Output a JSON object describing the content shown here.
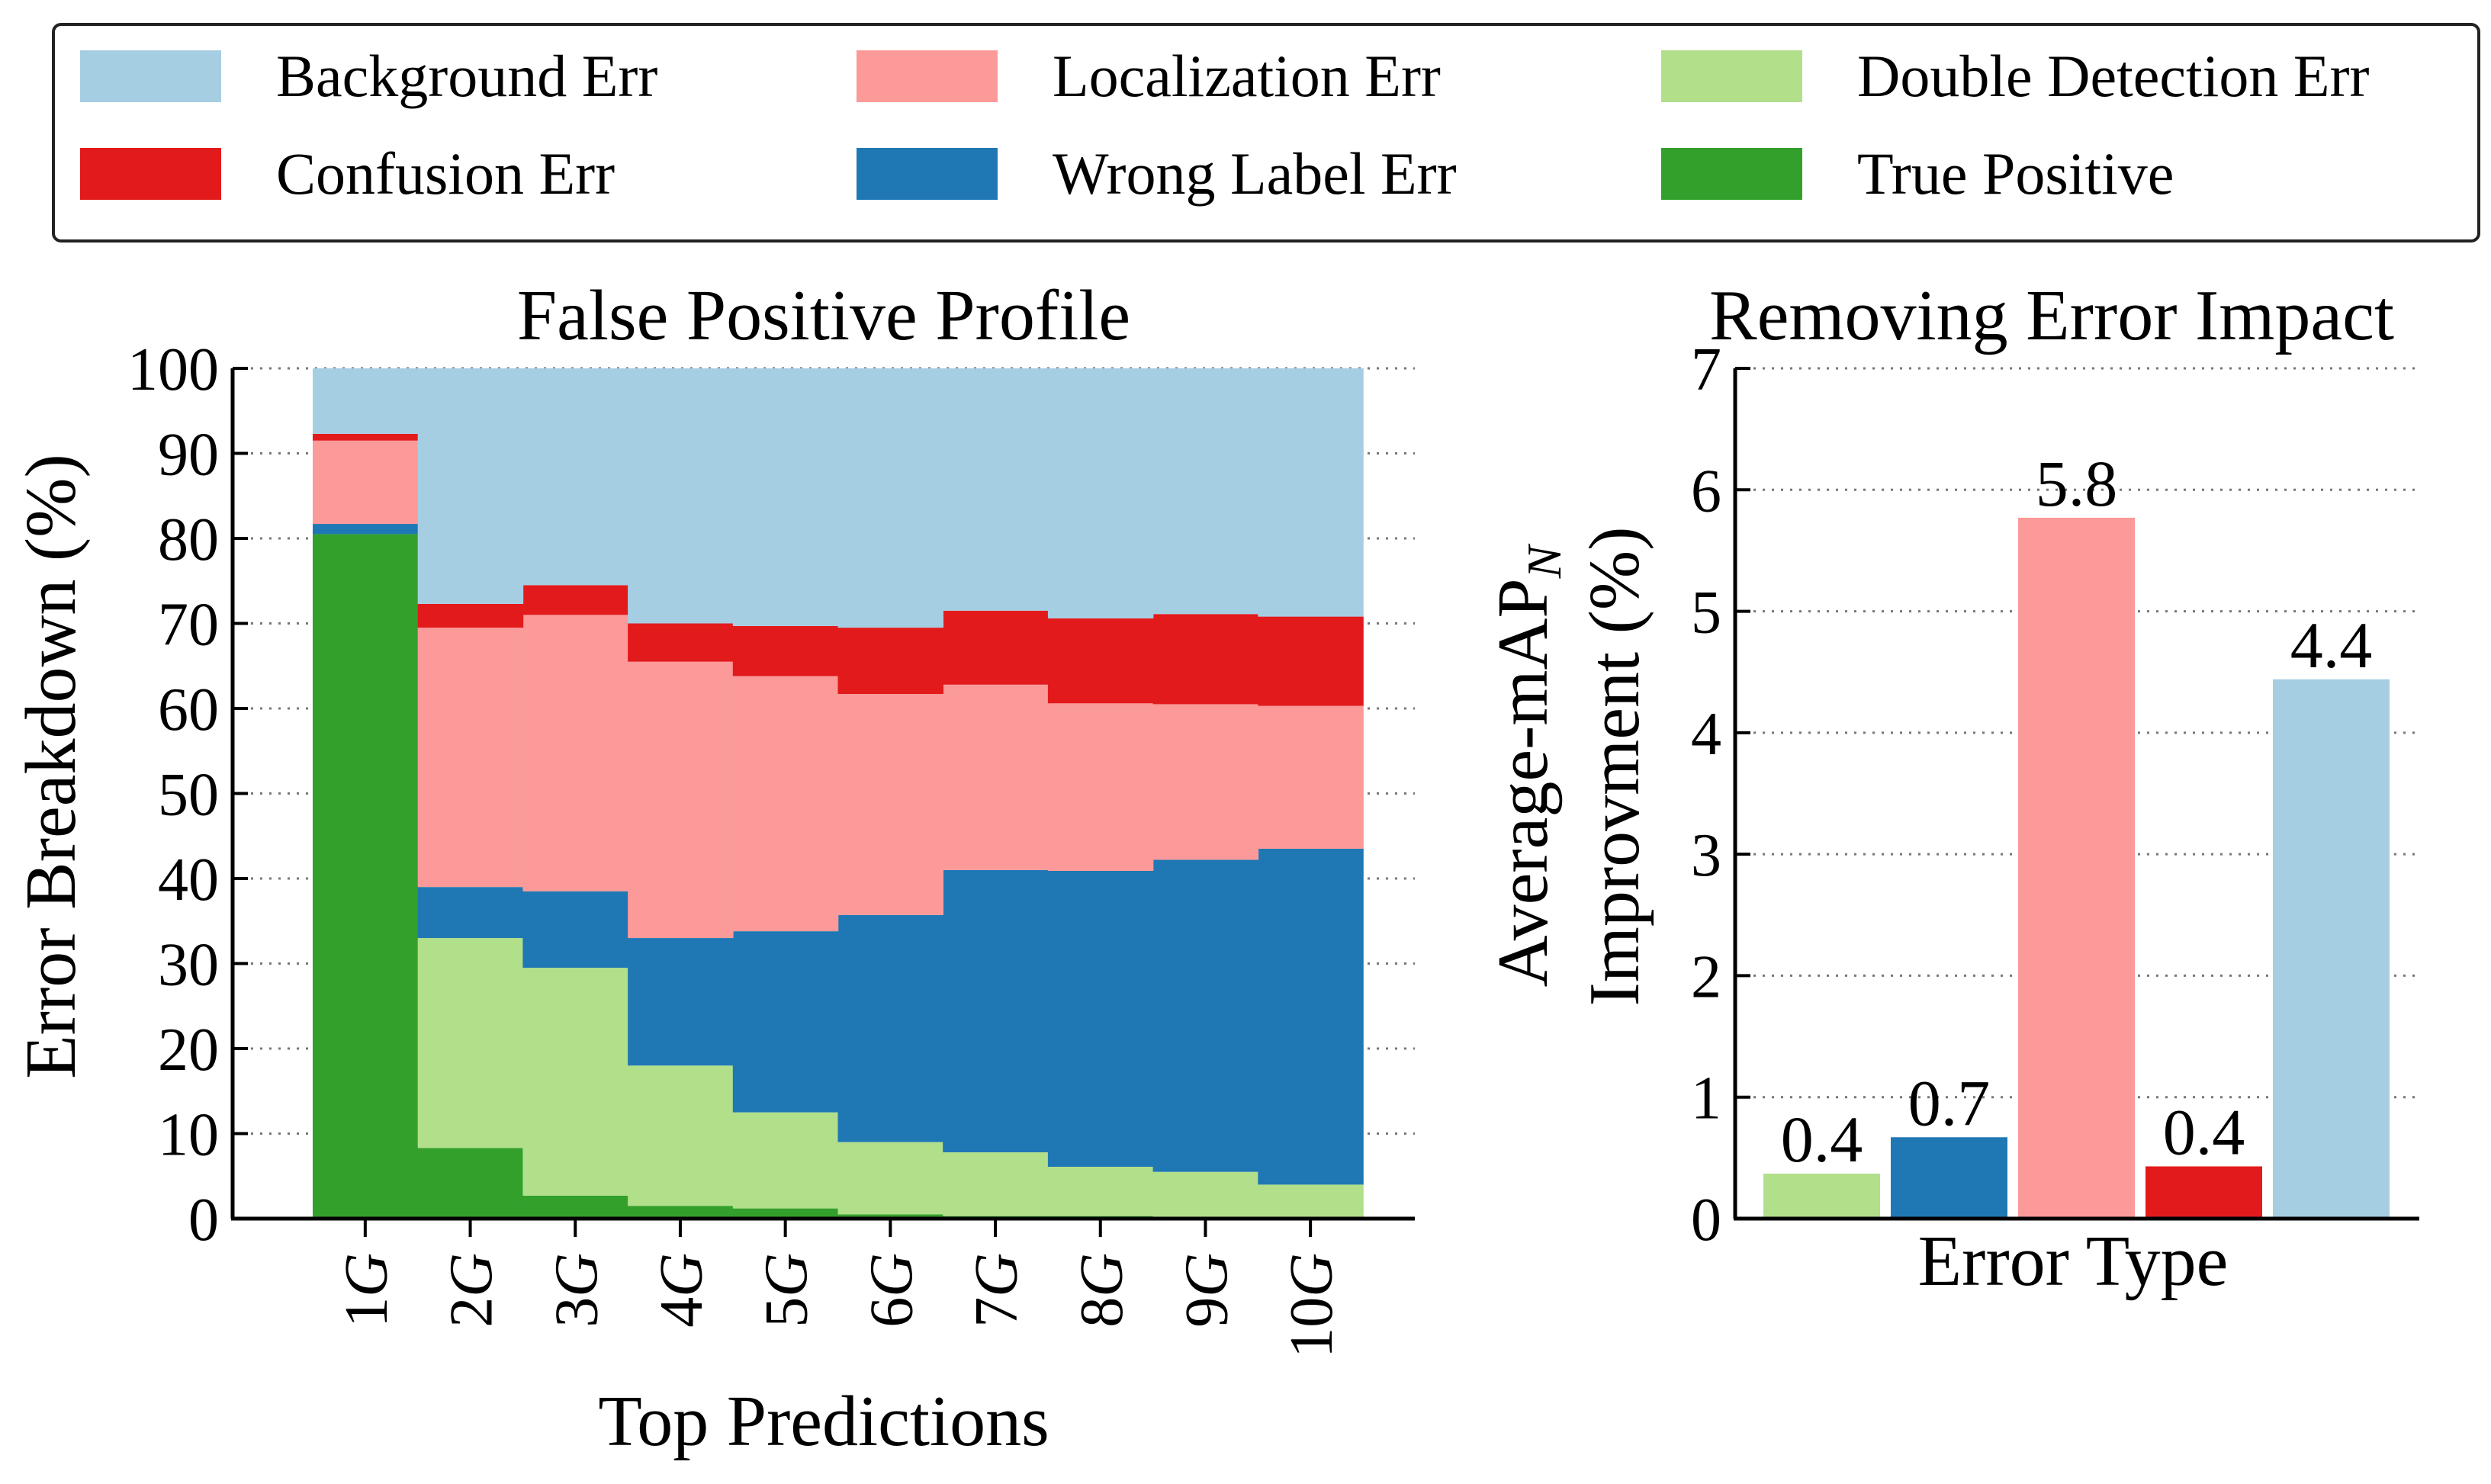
{
  "colors": {
    "background_err": "#a6cee3",
    "localization_err": "#fb9a99",
    "double_detection_err": "#b2df8a",
    "confusion_err": "#e31a1c",
    "wrong_label_err": "#1f78b4",
    "true_positive": "#33a02c"
  },
  "legend": {
    "placement": "top",
    "items": [
      {
        "key": "background_err",
        "label": "Background Err"
      },
      {
        "key": "localization_err",
        "label": "Localization Err"
      },
      {
        "key": "double_detection_err",
        "label": "Double Detection Err"
      },
      {
        "key": "confusion_err",
        "label": "Confusion Err"
      },
      {
        "key": "wrong_label_err",
        "label": "Wrong Label Err"
      },
      {
        "key": "true_positive",
        "label": "True Positive"
      }
    ]
  },
  "chart_data": [
    {
      "type": "area",
      "stacked": true,
      "step": true,
      "title": "False Positive Profile",
      "xlabel": "Top Predictions",
      "ylabel": "Error Breakdown (%)",
      "ylim": [
        0,
        100
      ],
      "yticks": [
        0,
        10,
        20,
        30,
        40,
        50,
        60,
        70,
        80,
        90,
        100
      ],
      "grid": "horizontal dotted",
      "categories": [
        "1G",
        "2G",
        "3G",
        "4G",
        "5G",
        "6G",
        "7G",
        "8G",
        "9G",
        "10G"
      ],
      "series": [
        {
          "key": "true_positive",
          "name": "True Positive",
          "values": [
            80.5,
            8.3,
            2.7,
            1.5,
            1.2,
            0.5,
            0.3,
            0.3,
            0.2,
            0.2
          ]
        },
        {
          "key": "double_detection_err",
          "name": "Double Detection Err",
          "values": [
            0,
            24.7,
            26.8,
            16.5,
            11.3,
            8.5,
            7.5,
            5.8,
            5.3,
            3.8
          ]
        },
        {
          "key": "wrong_label_err",
          "name": "Wrong Label Err",
          "values": [
            1.2,
            6.0,
            9.0,
            15.0,
            21.3,
            26.7,
            33.2,
            34.8,
            36.7,
            39.5
          ]
        },
        {
          "key": "localization_err",
          "name": "Localization Err",
          "values": [
            9.8,
            30.5,
            32.5,
            32.5,
            30.0,
            26.0,
            21.8,
            19.7,
            18.3,
            16.8
          ]
        },
        {
          "key": "confusion_err",
          "name": "Confusion Err",
          "values": [
            0.8,
            2.8,
            3.5,
            4.5,
            5.9,
            7.8,
            8.7,
            10.0,
            10.6,
            10.5
          ]
        },
        {
          "key": "background_err",
          "name": "Background Err",
          "values": [
            7.7,
            27.7,
            25.5,
            30.0,
            30.3,
            30.5,
            28.5,
            29.4,
            28.9,
            29.2
          ]
        }
      ]
    },
    {
      "type": "bar",
      "title": "Removing Error Impact",
      "xlabel": "Error Type",
      "ylabel_line1": "Average-mAP",
      "ylabel_sub": "N",
      "ylabel_line2": "Improvment (%)",
      "ylim": [
        0,
        7
      ],
      "yticks": [
        0,
        1,
        2,
        3,
        4,
        5,
        6,
        7
      ],
      "grid": "horizontal dotted",
      "bars": [
        {
          "key": "double_detection_err",
          "value": 0.37,
          "label": "0.4"
        },
        {
          "key": "wrong_label_err",
          "value": 0.67,
          "label": "0.7"
        },
        {
          "key": "localization_err",
          "value": 5.77,
          "label": "5.8"
        },
        {
          "key": "confusion_err",
          "value": 0.43,
          "label": "0.4"
        },
        {
          "key": "background_err",
          "value": 4.44,
          "label": "4.4"
        }
      ]
    }
  ]
}
